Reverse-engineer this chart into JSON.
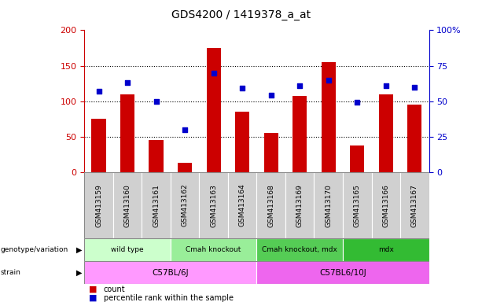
{
  "title": "GDS4200 / 1419378_a_at",
  "samples": [
    "GSM413159",
    "GSM413160",
    "GSM413161",
    "GSM413162",
    "GSM413163",
    "GSM413164",
    "GSM413168",
    "GSM413169",
    "GSM413170",
    "GSM413165",
    "GSM413166",
    "GSM413167"
  ],
  "counts": [
    75,
    110,
    45,
    13,
    175,
    85,
    55,
    107,
    155,
    38,
    110,
    95
  ],
  "percentiles": [
    57,
    63,
    50,
    30,
    70,
    59,
    54,
    61,
    65,
    49,
    61,
    60
  ],
  "ylim_left": [
    0,
    200
  ],
  "ylim_right": [
    0,
    100
  ],
  "yticks_left": [
    0,
    50,
    100,
    150,
    200
  ],
  "yticks_right": [
    0,
    25,
    50,
    75,
    100
  ],
  "bar_color": "#cc0000",
  "dot_color": "#0000cc",
  "bar_width": 0.5,
  "genotype_groups": [
    {
      "label": "wild type",
      "start": 0,
      "end": 3,
      "color": "#ccffcc"
    },
    {
      "label": "Cmah knockout",
      "start": 3,
      "end": 6,
      "color": "#99ee99"
    },
    {
      "label": "Cmah knockout, mdx",
      "start": 6,
      "end": 9,
      "color": "#55cc55"
    },
    {
      "label": "mdx",
      "start": 9,
      "end": 12,
      "color": "#33bb33"
    }
  ],
  "strain_groups": [
    {
      "label": "C57BL/6J",
      "start": 0,
      "end": 6,
      "color": "#ff99ff"
    },
    {
      "label": "C57BL6/10J",
      "start": 6,
      "end": 12,
      "color": "#ee66ee"
    }
  ],
  "sample_bg_color": "#d0d0d0",
  "legend_count_color": "#cc0000",
  "legend_dot_color": "#0000cc",
  "axis_label_color_left": "#cc0000",
  "axis_label_color_right": "#0000cc",
  "fig_width": 6.13,
  "fig_height": 3.84,
  "fig_dpi": 100
}
